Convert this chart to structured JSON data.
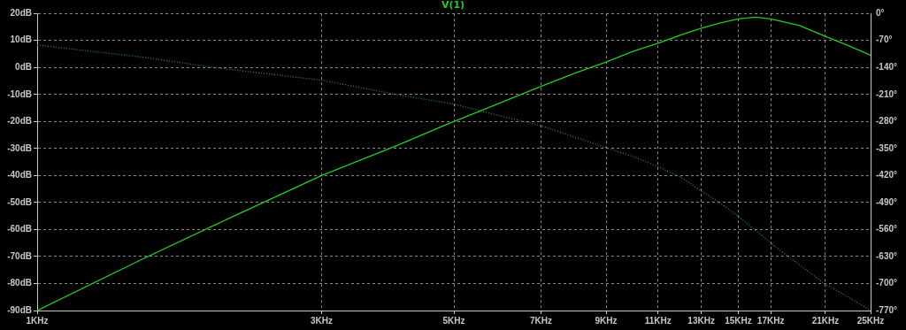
{
  "chart_data": {
    "type": "line",
    "title": "V(1)",
    "log": "x",
    "grid": true,
    "legend": false,
    "marker": "none",
    "xlim": [
      1,
      25
    ],
    "xticks": [
      {
        "value": 1,
        "label": "1KHz"
      },
      {
        "value": 3,
        "label": "3KHz"
      },
      {
        "value": 5,
        "label": "5KHz"
      },
      {
        "value": 7,
        "label": "7KHz"
      },
      {
        "value": 9,
        "label": "9KHz"
      },
      {
        "value": 11,
        "label": "11KHz"
      },
      {
        "value": 13,
        "label": "13KHz"
      },
      {
        "value": 15,
        "label": "15KHz"
      },
      {
        "value": 17,
        "label": "17KHz"
      },
      {
        "value": 21,
        "label": "21KHz"
      },
      {
        "value": 25,
        "label": "25KHz"
      }
    ],
    "ylim": [
      -90,
      20
    ],
    "yticks": [
      {
        "value": 20,
        "label": "20dB"
      },
      {
        "value": 10,
        "label": "10dB"
      },
      {
        "value": 0,
        "label": "0dB"
      },
      {
        "value": -10,
        "label": "-10dB"
      },
      {
        "value": -20,
        "label": "-20dB"
      },
      {
        "value": -30,
        "label": "-30dB"
      },
      {
        "value": -40,
        "label": "-40dB"
      },
      {
        "value": -50,
        "label": "-50dB"
      },
      {
        "value": -60,
        "label": "-60dB"
      },
      {
        "value": -70,
        "label": "-70dB"
      },
      {
        "value": -80,
        "label": "-80dB"
      },
      {
        "value": -90,
        "label": "-90dB"
      }
    ],
    "y2lim": [
      -770,
      0
    ],
    "y2ticks": [
      {
        "value": 0,
        "label": "0°"
      },
      {
        "value": -70,
        "label": "-70°"
      },
      {
        "value": -140,
        "label": "-140°"
      },
      {
        "value": -210,
        "label": "-210°"
      },
      {
        "value": -280,
        "label": "-280°"
      },
      {
        "value": -350,
        "label": "-350°"
      },
      {
        "value": -420,
        "label": "-420°"
      },
      {
        "value": -490,
        "label": "-490°"
      },
      {
        "value": -560,
        "label": "-560°"
      },
      {
        "value": -630,
        "label": "-630°"
      },
      {
        "value": -700,
        "label": "-700°"
      },
      {
        "value": -770,
        "label": "-770°"
      }
    ],
    "series": [
      {
        "color": "#22cc22",
        "line_style": "solid",
        "x": [
          1,
          1.5,
          2,
          3,
          4,
          5,
          6,
          7,
          8,
          9,
          10,
          11,
          12,
          13,
          14,
          15,
          16,
          17,
          19,
          21,
          23,
          25
        ],
        "values": [
          -90,
          -71,
          -58,
          -40,
          -29,
          -20,
          -13,
          -7,
          -2,
          2,
          6,
          9,
          12,
          14.5,
          16.5,
          18,
          18.6,
          18,
          15.5,
          11.5,
          8,
          4.5
        ]
      },
      {
        "color": "#1a9a1a",
        "line_style": "dotted",
        "axis": "y2",
        "x": [
          1,
          1.5,
          2,
          3,
          4,
          5,
          6,
          7,
          8,
          9,
          10,
          11,
          12,
          13,
          14,
          15,
          17,
          19,
          21,
          23,
          25
        ],
        "values": [
          -82,
          -113,
          -141,
          -173,
          -210,
          -235,
          -266,
          -291,
          -321,
          -348,
          -371,
          -397,
          -424,
          -460,
          -492,
          -526,
          -595,
          -652,
          -702,
          -736,
          -770
        ]
      }
    ]
  }
}
